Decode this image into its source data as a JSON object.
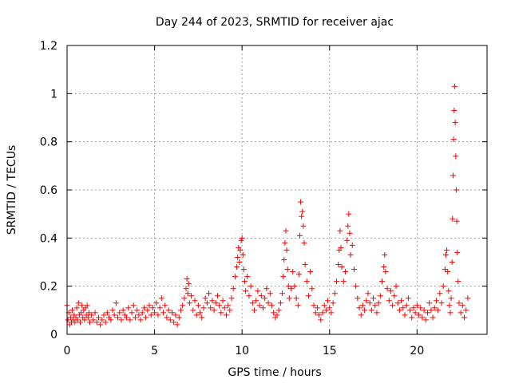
{
  "chart_data": {
    "type": "scatter",
    "title": "Day 244 of 2023, SRMTID for receiver ajac",
    "xlabel": "GPS time / hours",
    "ylabel": "SRMTID / TECUs",
    "xlim": [
      0,
      24
    ],
    "ylim": [
      0,
      1.2
    ],
    "x_ticks": [
      0,
      5,
      10,
      15,
      20
    ],
    "x_tick_labels": [
      "0",
      "5",
      "10",
      "15",
      "20"
    ],
    "y_ticks": [
      0,
      0.2,
      0.4,
      0.6,
      0.8,
      1.0,
      1.2
    ],
    "y_tick_labels": [
      "0",
      "0.2",
      "0.4",
      "0.6",
      "0.8",
      "1",
      "1.2"
    ],
    "grid": true,
    "marker": "+",
    "series": [
      {
        "name": "SRMTID",
        "color": "#ff0000",
        "points": [
          [
            0.0,
            0.12
          ],
          [
            0.05,
            0.06
          ],
          [
            0.1,
            0.09
          ],
          [
            0.15,
            0.04
          ],
          [
            0.2,
            0.07
          ],
          [
            0.25,
            0.05
          ],
          [
            0.3,
            0.1
          ],
          [
            0.35,
            0.06
          ],
          [
            0.4,
            0.08
          ],
          [
            0.45,
            0.05
          ],
          [
            0.5,
            0.07
          ],
          [
            0.55,
            0.11
          ],
          [
            0.6,
            0.06
          ],
          [
            0.65,
            0.13
          ],
          [
            0.7,
            0.08
          ],
          [
            0.75,
            0.05
          ],
          [
            0.8,
            0.09
          ],
          [
            0.85,
            0.12
          ],
          [
            0.9,
            0.07
          ],
          [
            0.95,
            0.1
          ],
          [
            1.0,
            0.06
          ],
          [
            1.05,
            0.11
          ],
          [
            1.1,
            0.08
          ],
          [
            1.15,
            0.12
          ],
          [
            1.2,
            0.07
          ],
          [
            1.25,
            0.09
          ],
          [
            1.3,
            0.05
          ],
          [
            1.4,
            0.08
          ],
          [
            1.5,
            0.06
          ],
          [
            1.6,
            0.09
          ],
          [
            1.7,
            0.05
          ],
          [
            1.8,
            0.07
          ],
          [
            1.9,
            0.04
          ],
          [
            2.0,
            0.06
          ],
          [
            2.1,
            0.08
          ],
          [
            2.2,
            0.05
          ],
          [
            2.3,
            0.09
          ],
          [
            2.4,
            0.07
          ],
          [
            2.5,
            0.06
          ],
          [
            2.6,
            0.1
          ],
          [
            2.7,
            0.08
          ],
          [
            2.8,
            0.13
          ],
          [
            2.9,
            0.07
          ],
          [
            3.0,
            0.09
          ],
          [
            3.1,
            0.06
          ],
          [
            3.2,
            0.1
          ],
          [
            3.3,
            0.08
          ],
          [
            3.4,
            0.07
          ],
          [
            3.5,
            0.11
          ],
          [
            3.6,
            0.06
          ],
          [
            3.7,
            0.09
          ],
          [
            3.8,
            0.12
          ],
          [
            3.9,
            0.07
          ],
          [
            4.0,
            0.1
          ],
          [
            4.1,
            0.08
          ],
          [
            4.2,
            0.06
          ],
          [
            4.3,
            0.09
          ],
          [
            4.4,
            0.11
          ],
          [
            4.5,
            0.07
          ],
          [
            4.6,
            0.1
          ],
          [
            4.7,
            0.12
          ],
          [
            4.8,
            0.08
          ],
          [
            4.9,
            0.11
          ],
          [
            5.0,
            0.09
          ],
          [
            5.1,
            0.13
          ],
          [
            5.2,
            0.08
          ],
          [
            5.3,
            0.11
          ],
          [
            5.4,
            0.15
          ],
          [
            5.5,
            0.09
          ],
          [
            5.6,
            0.12
          ],
          [
            5.7,
            0.07
          ],
          [
            5.8,
            0.1
          ],
          [
            5.9,
            0.06
          ],
          [
            6.0,
            0.09
          ],
          [
            6.1,
            0.05
          ],
          [
            6.2,
            0.08
          ],
          [
            6.3,
            0.04
          ],
          [
            6.4,
            0.07
          ],
          [
            6.5,
            0.1
          ],
          [
            6.6,
            0.12
          ],
          [
            6.7,
            0.15
          ],
          [
            6.8,
            0.19
          ],
          [
            6.85,
            0.23
          ],
          [
            6.9,
            0.17
          ],
          [
            6.95,
            0.21
          ],
          [
            7.0,
            0.13
          ],
          [
            7.1,
            0.16
          ],
          [
            7.2,
            0.1
          ],
          [
            7.3,
            0.14
          ],
          [
            7.4,
            0.08
          ],
          [
            7.5,
            0.12
          ],
          [
            7.6,
            0.09
          ],
          [
            7.7,
            0.07
          ],
          [
            7.8,
            0.11
          ],
          [
            7.9,
            0.15
          ],
          [
            8.0,
            0.13
          ],
          [
            8.1,
            0.17
          ],
          [
            8.2,
            0.11
          ],
          [
            8.3,
            0.14
          ],
          [
            8.4,
            0.1
          ],
          [
            8.5,
            0.13
          ],
          [
            8.6,
            0.16
          ],
          [
            8.7,
            0.12
          ],
          [
            8.8,
            0.09
          ],
          [
            8.9,
            0.14
          ],
          [
            9.0,
            0.11
          ],
          [
            9.1,
            0.08
          ],
          [
            9.2,
            0.12
          ],
          [
            9.3,
            0.1
          ],
          [
            9.4,
            0.15
          ],
          [
            9.5,
            0.19
          ],
          [
            9.6,
            0.24
          ],
          [
            9.7,
            0.28
          ],
          [
            9.75,
            0.32
          ],
          [
            9.8,
            0.36
          ],
          [
            9.85,
            0.3
          ],
          [
            9.9,
            0.35
          ],
          [
            9.95,
            0.39
          ],
          [
            10.0,
            0.4
          ],
          [
            10.05,
            0.33
          ],
          [
            10.1,
            0.27
          ],
          [
            10.15,
            0.22
          ],
          [
            10.2,
            0.18
          ],
          [
            10.3,
            0.24
          ],
          [
            10.4,
            0.16
          ],
          [
            10.5,
            0.2
          ],
          [
            10.6,
            0.13
          ],
          [
            10.7,
            0.1
          ],
          [
            10.8,
            0.14
          ],
          [
            10.9,
            0.18
          ],
          [
            11.0,
            0.12
          ],
          [
            11.1,
            0.16
          ],
          [
            11.2,
            0.11
          ],
          [
            11.3,
            0.15
          ],
          [
            11.4,
            0.19
          ],
          [
            11.5,
            0.13
          ],
          [
            11.6,
            0.17
          ],
          [
            11.7,
            0.12
          ],
          [
            11.8,
            0.09
          ],
          [
            11.9,
            0.07
          ],
          [
            12.0,
            0.08
          ],
          [
            12.1,
            0.1
          ],
          [
            12.2,
            0.13
          ],
          [
            12.3,
            0.17
          ],
          [
            12.35,
            0.24
          ],
          [
            12.4,
            0.31
          ],
          [
            12.45,
            0.38
          ],
          [
            12.5,
            0.43
          ],
          [
            12.55,
            0.35
          ],
          [
            12.6,
            0.27
          ],
          [
            12.65,
            0.2
          ],
          [
            12.7,
            0.15
          ],
          [
            12.8,
            0.19
          ],
          [
            12.9,
            0.26
          ],
          [
            13.0,
            0.2
          ],
          [
            13.1,
            0.15
          ],
          [
            13.2,
            0.12
          ],
          [
            13.25,
            0.25
          ],
          [
            13.3,
            0.41
          ],
          [
            13.35,
            0.55
          ],
          [
            13.4,
            0.49
          ],
          [
            13.45,
            0.51
          ],
          [
            13.5,
            0.45
          ],
          [
            13.55,
            0.38
          ],
          [
            13.6,
            0.29
          ],
          [
            13.7,
            0.22
          ],
          [
            13.8,
            0.16
          ],
          [
            13.9,
            0.26
          ],
          [
            14.0,
            0.19
          ],
          [
            14.1,
            0.12
          ],
          [
            14.2,
            0.09
          ],
          [
            14.3,
            0.11
          ],
          [
            14.4,
            0.08
          ],
          [
            14.5,
            0.06
          ],
          [
            14.6,
            0.09
          ],
          [
            14.7,
            0.12
          ],
          [
            14.8,
            0.1
          ],
          [
            14.9,
            0.14
          ],
          [
            15.0,
            0.11
          ],
          [
            15.1,
            0.09
          ],
          [
            15.2,
            0.13
          ],
          [
            15.3,
            0.17
          ],
          [
            15.4,
            0.22
          ],
          [
            15.5,
            0.29
          ],
          [
            15.55,
            0.35
          ],
          [
            15.6,
            0.43
          ],
          [
            15.65,
            0.36
          ],
          [
            15.7,
            0.28
          ],
          [
            15.8,
            0.22
          ],
          [
            15.9,
            0.26
          ],
          [
            16.0,
            0.39
          ],
          [
            16.05,
            0.45
          ],
          [
            16.1,
            0.5
          ],
          [
            16.15,
            0.42
          ],
          [
            16.2,
            0.33
          ],
          [
            16.3,
            0.37
          ],
          [
            16.4,
            0.27
          ],
          [
            16.5,
            0.2
          ],
          [
            16.6,
            0.15
          ],
          [
            16.7,
            0.11
          ],
          [
            16.8,
            0.08
          ],
          [
            16.9,
            0.12
          ],
          [
            17.0,
            0.1
          ],
          [
            17.1,
            0.14
          ],
          [
            17.2,
            0.17
          ],
          [
            17.3,
            0.13
          ],
          [
            17.4,
            0.1
          ],
          [
            17.5,
            0.15
          ],
          [
            17.6,
            0.12
          ],
          [
            17.7,
            0.09
          ],
          [
            17.8,
            0.13
          ],
          [
            17.9,
            0.16
          ],
          [
            18.0,
            0.22
          ],
          [
            18.1,
            0.28
          ],
          [
            18.15,
            0.33
          ],
          [
            18.2,
            0.26
          ],
          [
            18.3,
            0.19
          ],
          [
            18.4,
            0.14
          ],
          [
            18.5,
            0.18
          ],
          [
            18.6,
            0.12
          ],
          [
            18.7,
            0.16
          ],
          [
            18.8,
            0.2
          ],
          [
            18.9,
            0.13
          ],
          [
            19.0,
            0.1
          ],
          [
            19.1,
            0.14
          ],
          [
            19.2,
            0.11
          ],
          [
            19.3,
            0.08
          ],
          [
            19.4,
            0.12
          ],
          [
            19.5,
            0.15
          ],
          [
            19.6,
            0.1
          ],
          [
            19.7,
            0.07
          ],
          [
            19.8,
            0.11
          ],
          [
            19.9,
            0.09
          ],
          [
            20.0,
            0.12
          ],
          [
            20.1,
            0.08
          ],
          [
            20.2,
            0.11
          ],
          [
            20.3,
            0.07
          ],
          [
            20.4,
            0.1
          ],
          [
            20.5,
            0.06
          ],
          [
            20.6,
            0.09
          ],
          [
            20.7,
            0.13
          ],
          [
            20.8,
            0.1
          ],
          [
            20.9,
            0.07
          ],
          [
            21.0,
            0.11
          ],
          [
            21.1,
            0.14
          ],
          [
            21.2,
            0.1
          ],
          [
            21.3,
            0.17
          ],
          [
            21.4,
            0.13
          ],
          [
            21.5,
            0.2
          ],
          [
            21.6,
            0.27
          ],
          [
            21.65,
            0.33
          ],
          [
            21.7,
            0.35
          ],
          [
            21.75,
            0.26
          ],
          [
            21.8,
            0.18
          ],
          [
            21.85,
            0.12
          ],
          [
            21.9,
            0.09
          ],
          [
            21.95,
            0.15
          ],
          [
            22.0,
            0.3
          ],
          [
            22.03,
            0.48
          ],
          [
            22.06,
            0.66
          ],
          [
            22.09,
            0.81
          ],
          [
            22.12,
            0.93
          ],
          [
            22.15,
            1.03
          ],
          [
            22.18,
            0.88
          ],
          [
            22.21,
            0.74
          ],
          [
            22.24,
            0.6
          ],
          [
            22.27,
            0.47
          ],
          [
            22.3,
            0.34
          ],
          [
            22.35,
            0.22
          ],
          [
            22.4,
            0.13
          ],
          [
            22.5,
            0.09
          ],
          [
            22.6,
            0.12
          ],
          [
            22.7,
            0.07
          ],
          [
            22.8,
            0.1
          ],
          [
            22.9,
            0.15
          ]
        ]
      }
    ]
  }
}
